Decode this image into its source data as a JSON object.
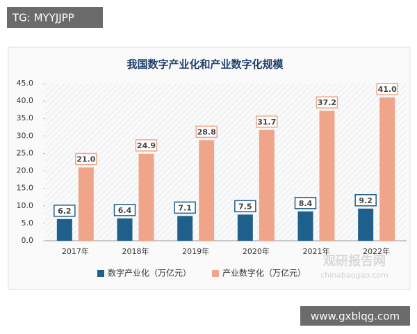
{
  "badge": "TG: MYYJJPP",
  "footer": "www.gxblqg.com",
  "watermark": {
    "name": "观研报告网",
    "url": "chinabaogao.com"
  },
  "chart_data": {
    "type": "bar",
    "title": "我国数字产业化和产业数字化规模",
    "categories": [
      "2017年",
      "2018年",
      "2019年",
      "2020年",
      "2021年",
      "2022年"
    ],
    "series": [
      {
        "name": "数字产业化（万亿元）",
        "color": "#1f5f8b",
        "values": [
          6.2,
          6.4,
          7.1,
          7.5,
          8.4,
          9.2
        ],
        "value_labels": [
          "6.2",
          "6.4",
          "7.1",
          "7.5",
          "8.4",
          "9.2"
        ]
      },
      {
        "name": "产业数字化（万亿元）",
        "color": "#f0a58a",
        "values": [
          21.0,
          24.9,
          28.8,
          31.7,
          37.2,
          41.0
        ],
        "value_labels": [
          "21.0",
          "24.9",
          "28.8",
          "31.7",
          "37.2",
          "41.0"
        ]
      }
    ],
    "ylim": [
      0,
      45
    ],
    "yticks": [
      {
        "value": 0,
        "label": "0.0"
      },
      {
        "value": 5,
        "label": "5.0"
      },
      {
        "value": 10,
        "label": "10.0"
      },
      {
        "value": 15,
        "label": "15.0"
      },
      {
        "value": 20,
        "label": "20.0"
      },
      {
        "value": 25,
        "label": "25.0"
      },
      {
        "value": 30,
        "label": "30.0"
      },
      {
        "value": 35,
        "label": "35.0"
      },
      {
        "value": 40,
        "label": "40.0"
      },
      {
        "value": 45,
        "label": "45.0"
      }
    ],
    "grid": false,
    "legend": "bottom"
  }
}
